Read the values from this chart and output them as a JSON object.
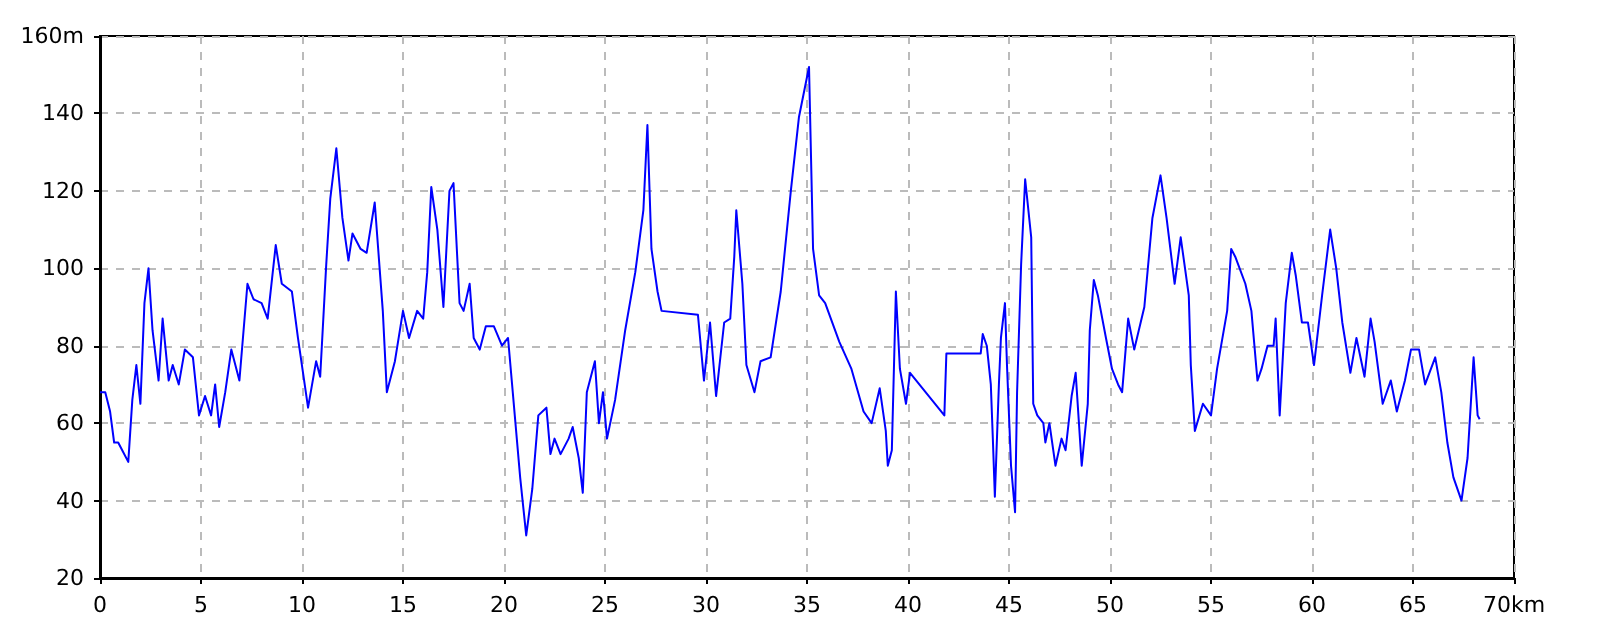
{
  "chart_data": {
    "type": "line",
    "color": "#0000ff",
    "grid": true,
    "marker": "none",
    "line_style": "solid",
    "xlim": [
      0,
      70
    ],
    "ylim": [
      20,
      160
    ],
    "xticks": [
      0,
      5,
      10,
      15,
      20,
      25,
      30,
      35,
      40,
      45,
      50,
      55,
      60,
      65,
      {
        "value": 70,
        "label": "70km"
      }
    ],
    "yticks": [
      20,
      40,
      60,
      80,
      100,
      120,
      140,
      {
        "value": 160,
        "label": "160m"
      }
    ],
    "x": [
      0,
      0.26,
      0.5,
      0.7,
      0.9,
      1.1,
      1.4,
      1.6,
      1.8,
      2,
      2.2,
      2.4,
      2.6,
      2.9,
      3.1,
      3.4,
      3.6,
      3.9,
      4.2,
      4.6,
      4.9,
      5.2,
      5.5,
      5.7,
      5.9,
      6.2,
      6.5,
      6.9,
      7.3,
      7.6,
      8,
      8.3,
      8.7,
      9,
      9.5,
      9.8,
      10.3,
      10.7,
      10.9,
      11.2,
      11.4,
      11.7,
      12,
      12.3,
      12.5,
      12.9,
      13.2,
      13.6,
      14,
      14.2,
      14.6,
      15,
      15.3,
      15.7,
      16,
      16.2,
      16.4,
      16.7,
      17,
      17.3,
      17.5,
      17.8,
      18,
      18.3,
      18.5,
      18.8,
      19.1,
      19.5,
      19.9,
      20.2,
      20.4,
      20.8,
      21.1,
      21.4,
      21.7,
      22.1,
      22.3,
      22.5,
      22.8,
      23.2,
      23.4,
      23.7,
      23.9,
      24.1,
      24.5,
      24.7,
      24.9,
      25.1,
      25.5,
      26,
      26.5,
      26.9,
      27.1,
      27.3,
      27.6,
      27.8,
      29.6,
      29.9,
      30.2,
      30.5,
      30.9,
      31.2,
      31.4,
      31.5,
      31.8,
      32,
      32.4,
      32.7,
      33.2,
      33.7,
      34.2,
      34.6,
      35.1,
      35.3,
      35.6,
      35.9,
      36.6,
      37.2,
      37.8,
      38.2,
      38.6,
      38.9,
      39,
      39.2,
      39.4,
      39.6,
      39.9,
      40.1,
      41.8,
      41.9,
      43.6,
      43.7,
      43.9,
      44.1,
      44.2,
      44.3,
      44.5,
      44.6,
      44.8,
      44.9,
      45.1,
      45.3,
      45.4,
      45.6,
      45.8,
      46.1,
      46.2,
      46.4,
      46.7,
      46.8,
      47,
      47.3,
      47.6,
      47.8,
      48.1,
      48.3,
      48.6,
      48.9,
      49,
      49.2,
      49.4,
      49.8,
      50.1,
      50.4,
      50.6,
      50.9,
      51.2,
      51.7,
      52.1,
      52.5,
      52.8,
      53.2,
      53.5,
      53.9,
      54,
      54.2,
      54.6,
      55,
      55.3,
      55.8,
      56,
      56.2,
      56.7,
      57,
      57.3,
      57.5,
      57.8,
      58.1,
      58.2,
      58.4,
      58.7,
      59,
      59.2,
      59.5,
      59.8,
      60.1,
      60.5,
      60.9,
      61.2,
      61.5,
      61.9,
      62.2,
      62.6,
      62.9,
      63.1,
      63.5,
      63.9,
      64.2,
      64.6,
      64.9,
      65.3,
      65.6,
      66.1,
      66.4,
      66.7,
      67,
      67.4,
      67.7,
      68,
      68.2,
      68.3
    ],
    "values": [
      68,
      68,
      63,
      55,
      55,
      53,
      50,
      66,
      75,
      65,
      91,
      100,
      84,
      71,
      87,
      71,
      75,
      70,
      79,
      77,
      62,
      67,
      62,
      70,
      59,
      68,
      79,
      71,
      96,
      92,
      91,
      87,
      106,
      96,
      94,
      82,
      64,
      76,
      72,
      101,
      118,
      131,
      113,
      102,
      109,
      105,
      104,
      117,
      89,
      68,
      76,
      89,
      82,
      89,
      87,
      99,
      121,
      110,
      90,
      120,
      122,
      91,
      89,
      96,
      82,
      79,
      85,
      85,
      80,
      82,
      70,
      46,
      31,
      43,
      62,
      64,
      52,
      56,
      52,
      56,
      59,
      51,
      42,
      68,
      76,
      60,
      68,
      56,
      66,
      84,
      99,
      115,
      137,
      105,
      94,
      89,
      88,
      71,
      86,
      67,
      86,
      87,
      103,
      115,
      96,
      75,
      68,
      76,
      77,
      94,
      120,
      139,
      152,
      105,
      93,
      91,
      81,
      74,
      63,
      60,
      69,
      58,
      49,
      53,
      94,
      74,
      65,
      73,
      62,
      78,
      78,
      83,
      80,
      70,
      56,
      41,
      70,
      82,
      91,
      75,
      49,
      37,
      68,
      101,
      123,
      108,
      65,
      62,
      60,
      55,
      60,
      49,
      56,
      53,
      67,
      73,
      49,
      65,
      84,
      97,
      93,
      82,
      74,
      70,
      68,
      87,
      79,
      90,
      113,
      124,
      113,
      96,
      108,
      93,
      75,
      58,
      65,
      62,
      74,
      89,
      105,
      103,
      96,
      89,
      71,
      74,
      80,
      80,
      87,
      62,
      91,
      104,
      98,
      86,
      86,
      75,
      93,
      110,
      100,
      86,
      73,
      82,
      72,
      87,
      81,
      65,
      71,
      63,
      71,
      79,
      79,
      70,
      77,
      68,
      55,
      46,
      40,
      51,
      77,
      62,
      61
    ]
  }
}
